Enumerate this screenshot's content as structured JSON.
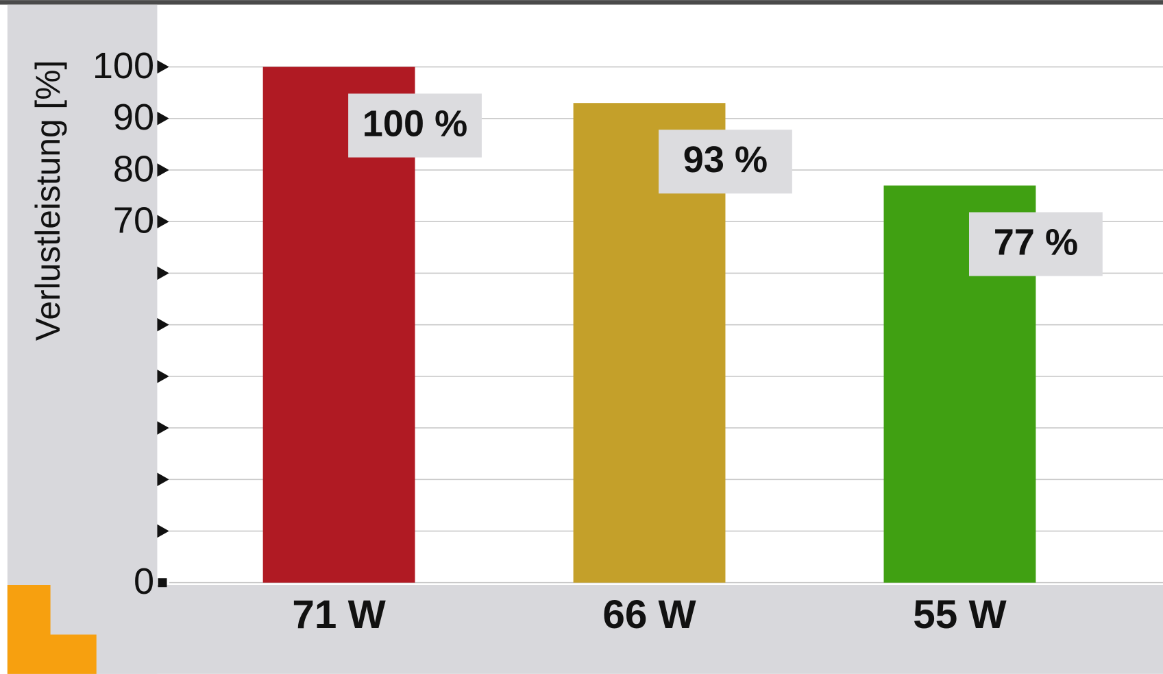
{
  "chart_data": {
    "type": "bar",
    "y_axis_label": "Verlustleistung [%]",
    "categories": [
      "71 W",
      "66 W",
      "55 W"
    ],
    "values": [
      100,
      93,
      77
    ],
    "value_labels": [
      "100 %",
      "93 %",
      "77 %"
    ],
    "colors": [
      "#b01a23",
      "#c4a02a",
      "#40a012"
    ],
    "ylim": [
      0,
      100
    ],
    "yticks": [
      0,
      70,
      80,
      90,
      100
    ],
    "yminor_ticks": [
      10,
      20,
      30,
      40,
      50,
      60
    ],
    "grid": true
  }
}
